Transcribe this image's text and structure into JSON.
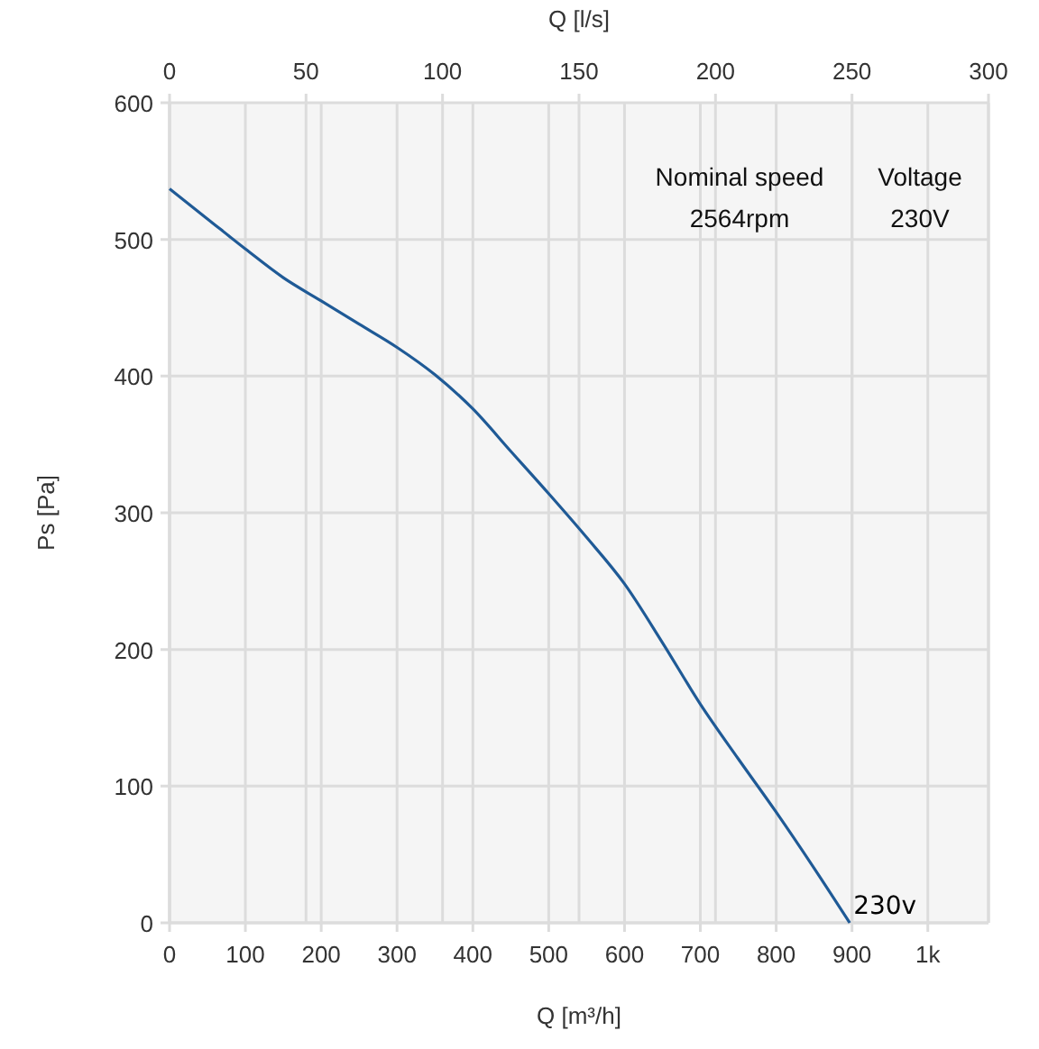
{
  "chart_data": {
    "type": "line",
    "xlabel": "Q [m³/h]",
    "ylabel": "Ps [Pa]",
    "x2label": "Q [l/s]",
    "xlim": [
      0,
      1080
    ],
    "xticks": [
      0,
      100,
      200,
      300,
      400,
      500,
      600,
      700,
      800,
      900,
      {
        "value": 1000,
        "label": "1k"
      }
    ],
    "x2lim": [
      0,
      300
    ],
    "x2ticks": [
      0,
      50,
      100,
      150,
      200,
      250,
      300
    ],
    "ylim": [
      0,
      600
    ],
    "yticks": [
      0,
      100,
      200,
      300,
      400,
      500,
      600
    ],
    "grid": true,
    "marker": "none",
    "line_style": "solid",
    "annotations": [
      "Nominal speed",
      "2564rpm",
      "Voltage",
      "230V"
    ],
    "series": [
      {
        "name": "230v",
        "color": "#1f5a96",
        "x": [
          0,
          50,
          100,
          150,
          200,
          250,
          300,
          350,
          400,
          450,
          500,
          550,
          600,
          650,
          700,
          750,
          800,
          850,
          897
        ],
        "values": [
          537,
          515,
          493,
          472,
          455,
          438,
          421,
          401,
          376,
          345,
          314,
          282,
          248,
          205,
          160,
          120,
          81,
          40,
          0
        ]
      }
    ]
  }
}
